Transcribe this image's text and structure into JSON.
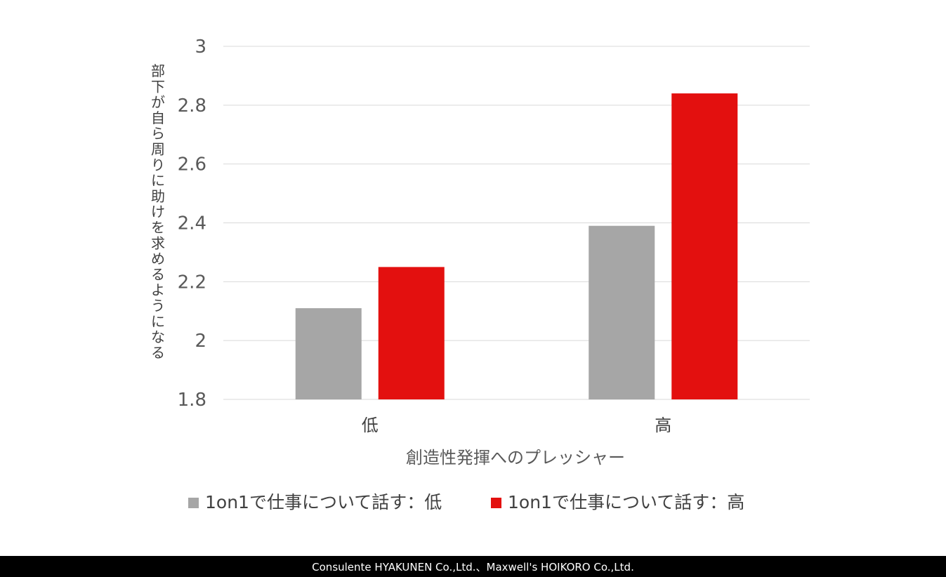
{
  "chart_data": {
    "type": "bar",
    "title": "",
    "xlabel": "創造性発揮へのプレッシャー",
    "ylabel": "部下が自ら周りに助けを求めるようになる",
    "categories": [
      "低",
      "高"
    ],
    "series": [
      {
        "name": "1on1で仕事について話す：低",
        "values": [
          2.11,
          2.39
        ],
        "color": "#a6a6a6"
      },
      {
        "name": "1on1で仕事について話す：高",
        "values": [
          2.25,
          2.84
        ],
        "color": "#e3100f"
      }
    ],
    "ylim": [
      1.8,
      3
    ],
    "yticks": [
      "1.8",
      "2",
      "2.2",
      "2.4",
      "2.6",
      "2.8",
      "3"
    ],
    "grid": true,
    "legend_position": "bottom"
  },
  "footer": {
    "credit": "Consulente HYAKUNEN Co.,Ltd.、Maxwell's HOIKORO Co.,Ltd."
  }
}
